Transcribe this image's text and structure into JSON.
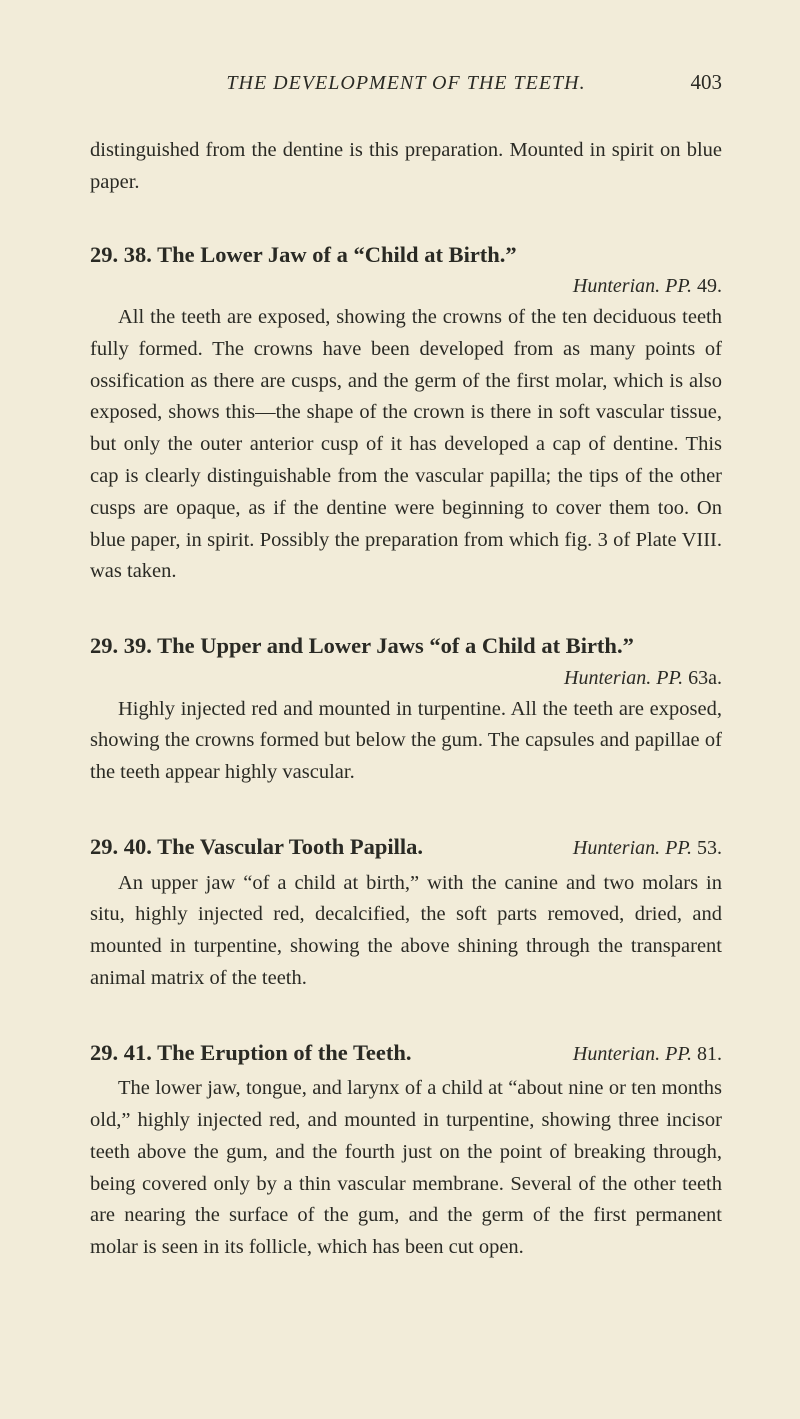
{
  "page": {
    "running_title": "THE DEVELOPMENT OF THE TEETH.",
    "page_number": "403",
    "background_color": "#f2ecd9",
    "text_color": "#2a2a24",
    "font_body_pt": 15,
    "font_heading_pt": 16,
    "line_height": 1.55
  },
  "intro_para": "distinguished from the dentine is this preparation. Mounted in spirit on blue paper.",
  "sections": [
    {
      "number": "29.",
      "subnumber": "38.",
      "title": "The Lower Jaw of a “Child at Birth.”",
      "citation_ital": "Hunterian. PP.",
      "citation_tail": " 49.",
      "citation_inline": false,
      "body": "All the teeth are exposed, showing the crowns of the ten deciduous teeth fully formed. The crowns have been developed from as many points of ossification as there are cusps, and the germ of the first molar, which is also exposed, shows this—the shape of the crown is there in soft vascular tissue, but only the outer anterior cusp of it has developed a cap of dentine. This cap is clearly distinguishable from the vascular papilla; the tips of the other cusps are opaque, as if the dentine were beginning to cover them too. On blue paper, in spirit. Possibly the preparation from which fig. 3 of Plate VIII. was taken."
    },
    {
      "number": "29.",
      "subnumber": "39.",
      "title": "The Upper and Lower Jaws “of a Child at Birth.”",
      "citation_ital": "Hunterian. PP.",
      "citation_tail": " 63a.",
      "citation_inline": false,
      "body": "Highly injected red and mounted in turpentine. All the teeth are exposed, showing the crowns formed but below the gum. The capsules and papillae of the teeth appear highly vascular."
    },
    {
      "number": "29.",
      "subnumber": "40.",
      "title": "The Vascular Tooth Papilla.",
      "citation_ital": "Hunterian. PP.",
      "citation_tail": " 53.",
      "citation_inline": true,
      "body": "An upper jaw “of a child at birth,” with the canine and two molars in situ, highly injected red, decalcified, the soft parts removed, dried, and mounted in turpentine, showing the above shining through the transparent animal matrix of the teeth."
    },
    {
      "number": "29.",
      "subnumber": "41.",
      "title": "The Eruption of the Teeth.",
      "citation_ital": "Hunterian. PP.",
      "citation_tail": " 81.",
      "citation_inline": true,
      "body": "The lower jaw, tongue, and larynx of a child at “about nine or ten months old,” highly injected red, and mounted in turpentine, showing three incisor teeth above the gum, and the fourth just on the point of breaking through, being covered only by a thin vascular membrane. Several of the other teeth are nearing the surface of the gum, and the germ of the first permanent molar is seen in its follicle, which has been cut open."
    }
  ]
}
